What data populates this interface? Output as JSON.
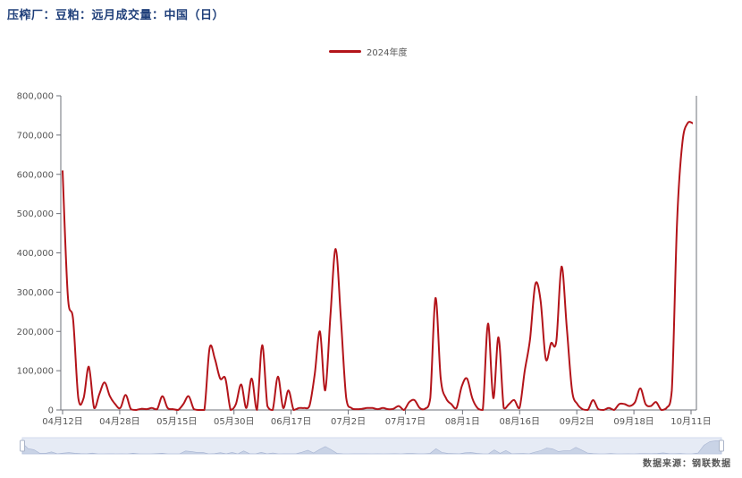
{
  "title": "压榨厂：豆粕：远月成交量：中国（日）",
  "source": "数据来源：钢联数据",
  "colors": {
    "series": "#b3141a",
    "title": "#1f3f7a",
    "axis": "#6e7079",
    "zoom_bg": "#e6ebf5",
    "zoom_fill": "#c9d3e6"
  },
  "legend": {
    "label": "2024年度"
  },
  "chart_data": {
    "type": "line",
    "title": "压榨厂：豆粕：远月成交量：中国（日）",
    "xlabel": "",
    "ylabel": "",
    "ylim": [
      0,
      800000
    ],
    "y_ticks": [
      "0",
      "100,000",
      "200,000",
      "300,000",
      "400,000",
      "500,000",
      "600,000",
      "700,000",
      "800,000"
    ],
    "x_ticks": [
      "04月12日",
      "04月28日",
      "05月15日",
      "05月30日",
      "06月17日",
      "07月2日",
      "07月17日",
      "08月1日",
      "08月16日",
      "09月2日",
      "09月18日",
      "10月11日"
    ],
    "grid": false,
    "legend_position": "top-center",
    "series": [
      {
        "name": "2024年度",
        "values": [
          610000,
          290000,
          230000,
          30000,
          30000,
          110000,
          5000,
          40000,
          70000,
          35000,
          15000,
          5000,
          38000,
          2000,
          0,
          3000,
          2000,
          5000,
          2000,
          35000,
          5000,
          2000,
          0,
          15000,
          35000,
          2000,
          0,
          0,
          158000,
          130000,
          80000,
          80000,
          0,
          15000,
          65000,
          5000,
          80000,
          0,
          165000,
          10000,
          0,
          85000,
          5000,
          50000,
          0,
          5000,
          5000,
          10000,
          90000,
          200000,
          50000,
          240000,
          410000,
          230000,
          30000,
          5000,
          2000,
          3000,
          5000,
          5000,
          2000,
          5000,
          2000,
          3000,
          10000,
          0,
          20000,
          25000,
          5000,
          3000,
          30000,
          285000,
          80000,
          30000,
          15000,
          5000,
          60000,
          80000,
          30000,
          5000,
          0,
          220000,
          30000,
          185000,
          5000,
          15000,
          25000,
          5000,
          100000,
          180000,
          320000,
          280000,
          130000,
          170000,
          175000,
          365000,
          210000,
          50000,
          15000,
          2000,
          0,
          25000,
          2000,
          0,
          5000,
          0,
          15000,
          15000,
          10000,
          20000,
          55000,
          15000,
          10000,
          20000,
          0,
          5000,
          50000,
          480000,
          680000,
          730000,
          730000
        ]
      }
    ]
  }
}
